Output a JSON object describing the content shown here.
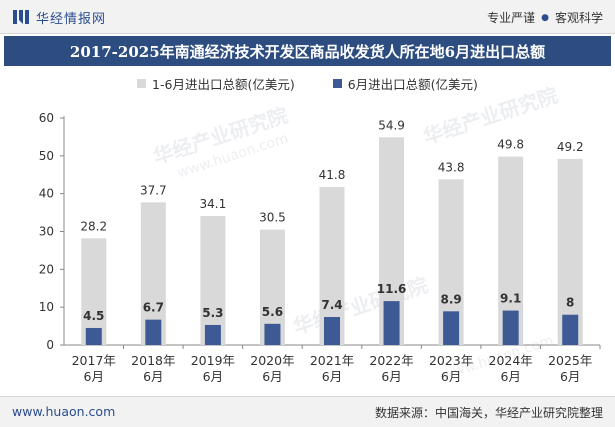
{
  "header": {
    "brand_name": "华经情报网",
    "slogan_left": "专业严谨",
    "slogan_right": "客观科学",
    "logo_icon": "huajing-logo-icon"
  },
  "title": "2017-2025年南通经济技术开发区商品收发货人所在地6月进出口总额",
  "footer": {
    "url": "www.huaon.com",
    "source": "数据来源：中国海关，华经产业研究院整理"
  },
  "watermark": {
    "text": "华经产业研究院",
    "url": "www.huaon.com"
  },
  "colors": {
    "series1": "#d9d9d9",
    "series2": "#3d5a95",
    "title_bg": "#2d4d80"
  },
  "chart_data": {
    "type": "bar",
    "title": "2017-2025年南通经济技术开发区商品收发货人所在地6月进出口总额",
    "categories": [
      "2017年\n6月",
      "2018年\n6月",
      "2019年\n6月",
      "2020年\n6月",
      "2021年\n6月",
      "2022年\n6月",
      "2023年\n6月",
      "2024年\n6月",
      "2025年\n6月"
    ],
    "series": [
      {
        "name": "1-6月进出口总额(亿美元)",
        "values": [
          28.2,
          37.7,
          34.1,
          30.5,
          41.8,
          54.9,
          43.8,
          49.8,
          49.2
        ],
        "labels": [
          "28.2",
          "37.7",
          "34.1",
          "30.5",
          "41.8",
          "54.9",
          "43.8",
          "49.8",
          "49.2"
        ]
      },
      {
        "name": "6月进出口总额(亿美元)",
        "values": [
          4.5,
          6.7,
          5.3,
          5.6,
          7.4,
          11.6,
          8.9,
          9.1,
          8
        ],
        "labels": [
          "4.5",
          "6.7",
          "5.3",
          "5.6",
          "7.4",
          "11.6",
          "8.9",
          "9.1",
          "8"
        ]
      }
    ],
    "ylim": [
      0,
      60
    ],
    "yticks": [
      0,
      10,
      20,
      30,
      40,
      50,
      60
    ],
    "grid": false,
    "legend_position": "top-center",
    "xlabel": "",
    "ylabel": ""
  }
}
